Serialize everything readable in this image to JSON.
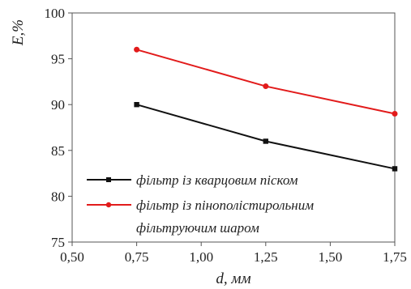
{
  "chart_data": {
    "type": "line",
    "xlabel": "d, мм",
    "ylabel": "E,%",
    "xlim": [
      0.5,
      1.75
    ],
    "ylim": [
      75,
      100
    ],
    "x_ticks": [
      "0,50",
      "0,75",
      "1,00",
      "1,25",
      "1,50",
      "1,75"
    ],
    "y_ticks": [
      "75",
      "80",
      "85",
      "90",
      "95",
      "100"
    ],
    "x_tick_values": [
      0.5,
      0.75,
      1.0,
      1.25,
      1.5,
      1.75
    ],
    "y_tick_values": [
      75,
      80,
      85,
      90,
      95,
      100
    ],
    "grid": false,
    "legend_position": "bottom-right",
    "series": [
      {
        "name": "фільтр із кварцовим піском",
        "color": "#111111",
        "marker": "square",
        "x": [
          0.75,
          1.25,
          1.75
        ],
        "y": [
          90,
          86,
          83
        ]
      },
      {
        "name_lines": [
          "фільтр із пінополістирольним",
          "фільтруючим шаром"
        ],
        "color": "#e21b1b",
        "marker": "circle",
        "x": [
          0.75,
          1.25,
          1.75
        ],
        "y": [
          96,
          92,
          89
        ]
      }
    ]
  }
}
